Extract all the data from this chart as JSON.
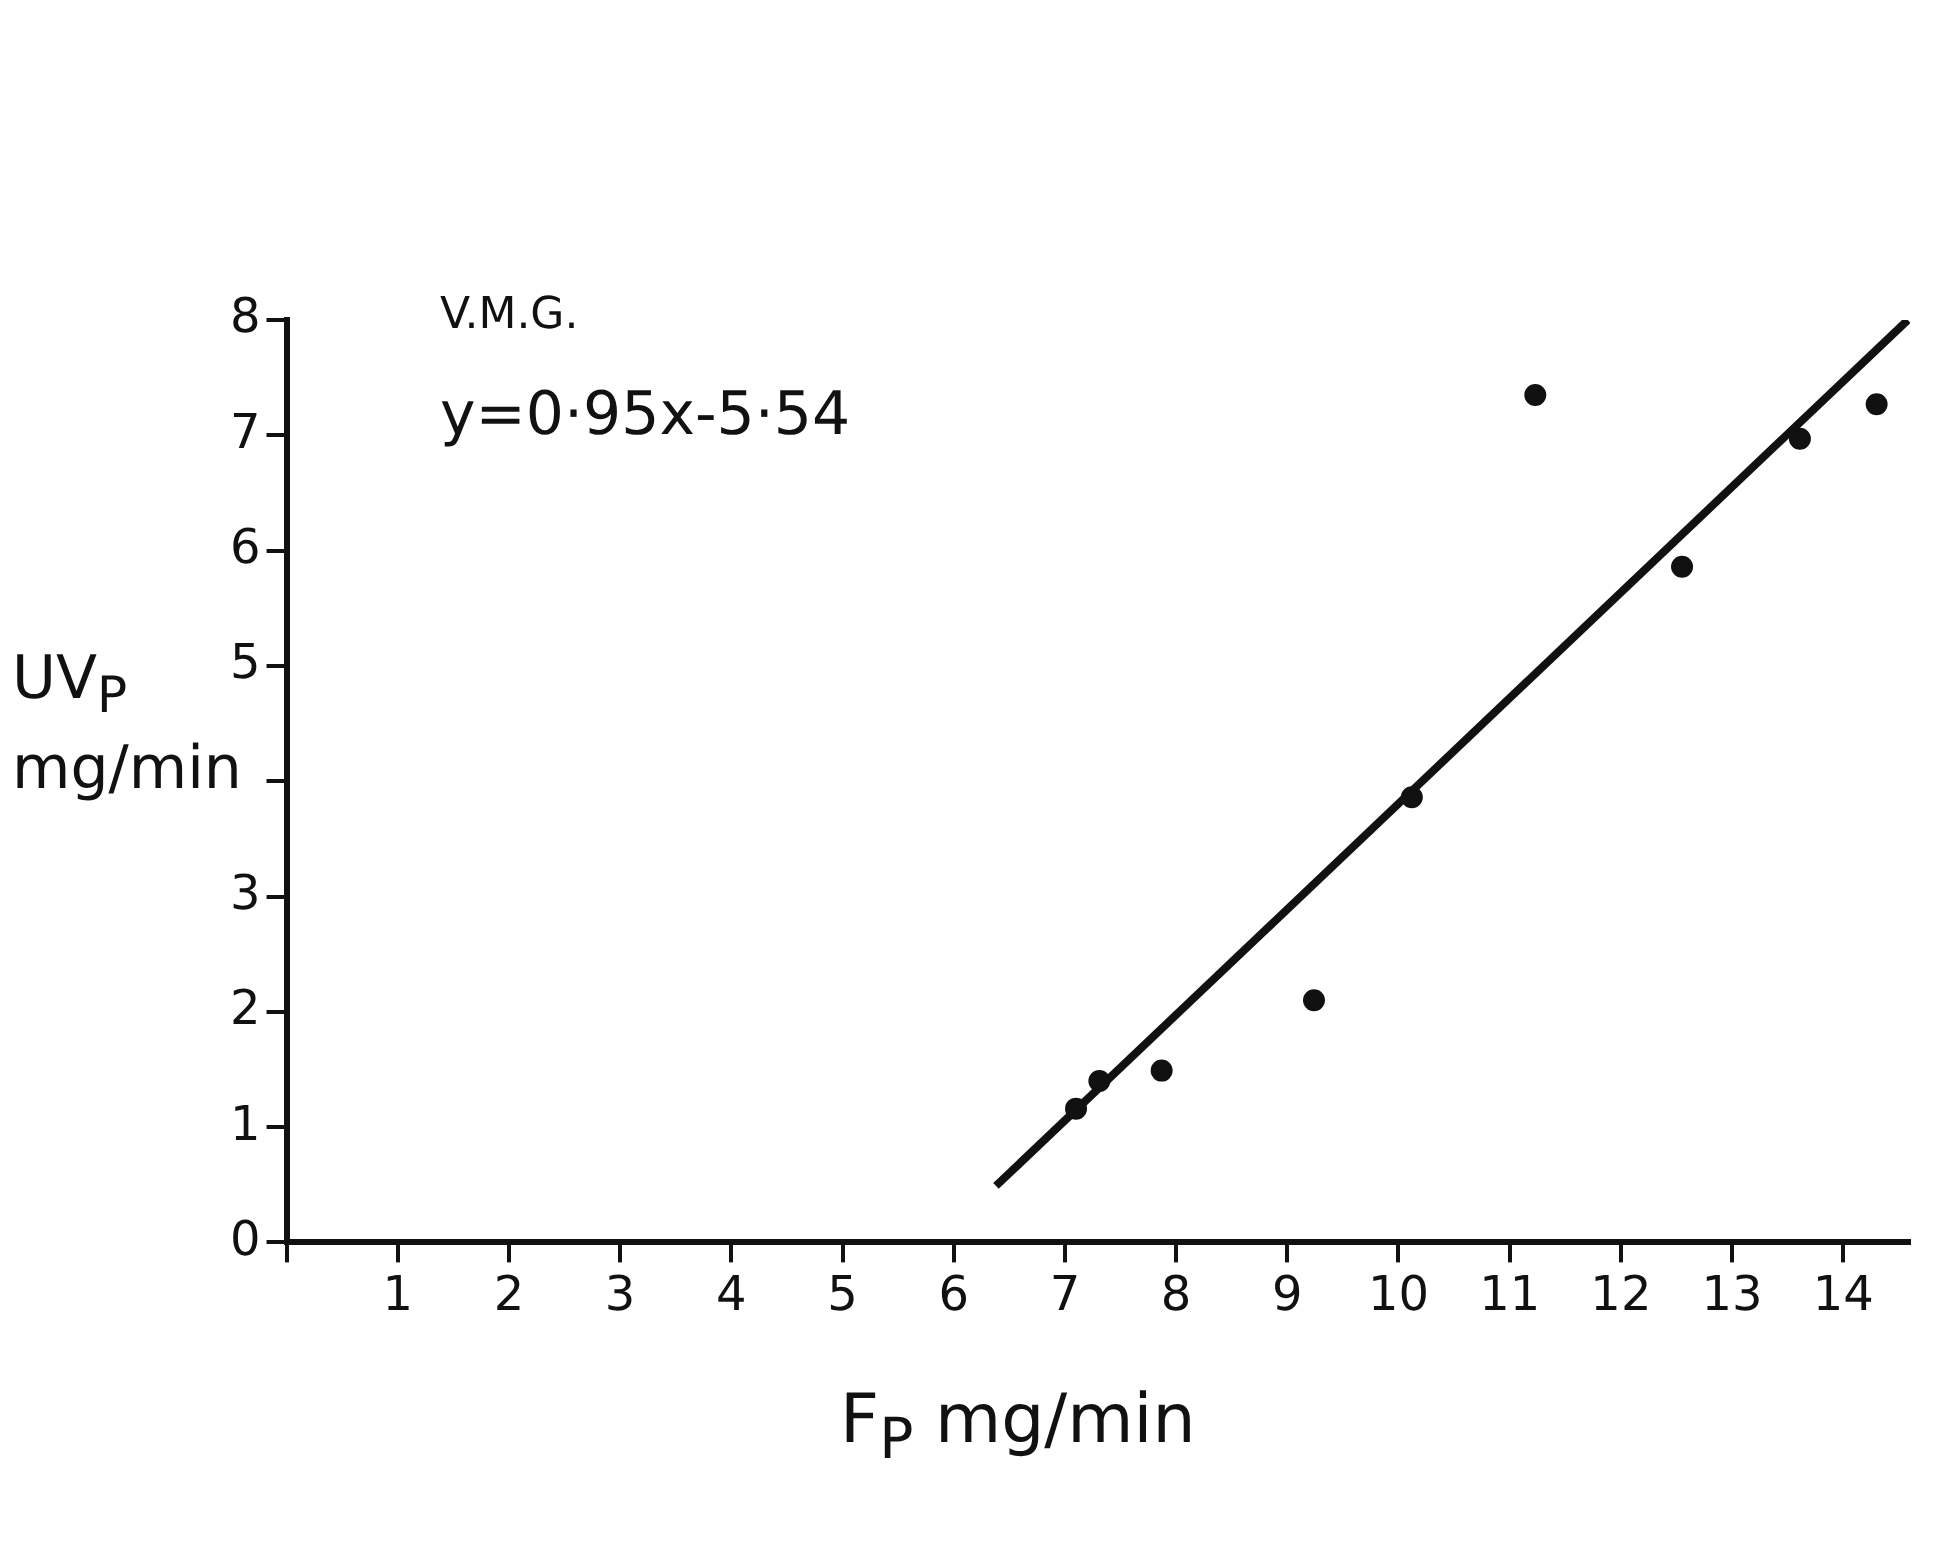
{
  "chart_data": {
    "type": "scatter",
    "xlabel": "F$_{P}$ mg/min",
    "ylabel": "UV$_{P}$ mg/min",
    "annotations": [
      "V.M.G.",
      "y=0·95x-5·54"
    ],
    "xlim": [
      0,
      14.6
    ],
    "ylim": [
      0,
      8
    ],
    "xticks": [
      {
        "value": 0,
        "label": null
      },
      1,
      2,
      3,
      4,
      5,
      6,
      7,
      8,
      9,
      10,
      11,
      12,
      13,
      14
    ],
    "yticks": [
      0,
      1,
      2,
      3,
      {
        "value": 4,
        "label": null
      },
      5,
      6,
      7,
      8
    ],
    "grid": false,
    "marker": "circle",
    "series": [
      {
        "color": "#111111",
        "x": [
          7.1,
          7.31,
          7.87,
          9.24,
          10.12,
          11.23,
          12.55,
          13.61,
          14.3
        ],
        "values": [
          1.16,
          1.4,
          1.49,
          2.1,
          3.86,
          7.35,
          5.86,
          6.97,
          7.27
        ]
      },
      {
        "type": "line",
        "color": "#111111",
        "x": [
          6.38,
          14.58
        ],
        "values": [
          0.49,
          8.0
        ],
        "marker": "none"
      }
    ]
  }
}
